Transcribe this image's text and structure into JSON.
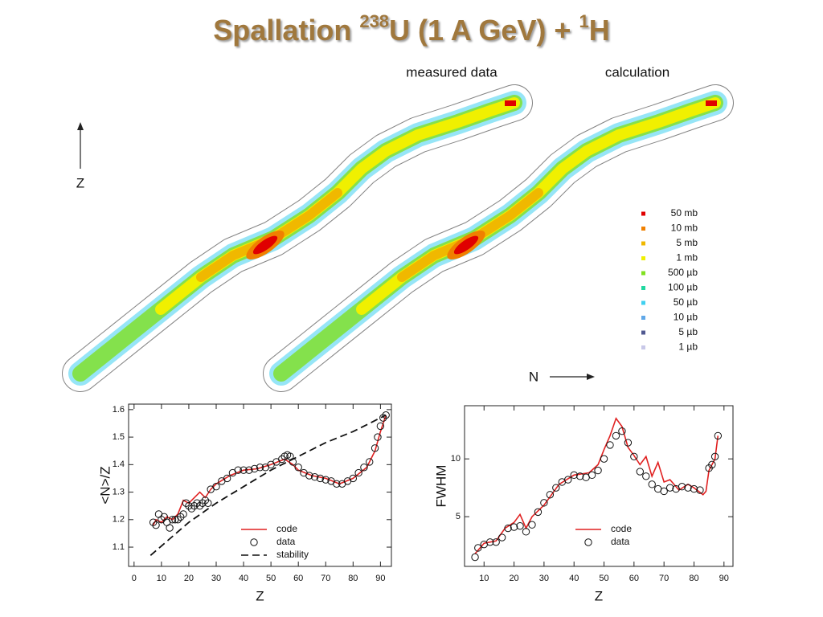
{
  "title": [
    "Spallation ",
    "238",
    "U (1 A GeV) + ",
    "1",
    "H"
  ],
  "panels": {
    "labels": [
      "measured data",
      "calculation"
    ],
    "x_axis_label": "N",
    "y_axis_label": "Z",
    "legend": [
      {
        "label": "50 mb",
        "color": "#e00000"
      },
      {
        "label": "10 mb",
        "color": "#f08000"
      },
      {
        "label": "5 mb",
        "color": "#f0b800"
      },
      {
        "label": "1 mb",
        "color": "#f0f000"
      },
      {
        "label": "500 µb",
        "color": "#80e020"
      },
      {
        "label": "100 µb",
        "color": "#20d8a0"
      },
      {
        "label": "50 µb",
        "color": "#40d0f0"
      },
      {
        "label": "10 µb",
        "color": "#60a8e8"
      },
      {
        "label": "5 µb",
        "color": "#505890"
      },
      {
        "label": "1 µb",
        "color": "#c8c8e8"
      }
    ]
  },
  "chart_data": [
    {
      "type": "line",
      "xlabel": "Z",
      "ylabel": "<N>/Z",
      "xlim": [
        -2,
        94
      ],
      "ylim": [
        1.03,
        1.62
      ],
      "xticks": [
        0,
        10,
        20,
        30,
        40,
        50,
        60,
        70,
        80,
        90
      ],
      "yticks": [
        1.1,
        1.2,
        1.3,
        1.4,
        1.5,
        1.6
      ],
      "series": [
        {
          "name": "code",
          "color": "#e02020",
          "style": "line",
          "dash": false,
          "x": [
            7,
            8,
            10,
            12,
            14,
            16,
            18,
            20,
            22,
            24,
            26,
            28,
            30,
            35,
            40,
            45,
            50,
            55,
            58,
            60,
            65,
            70,
            75,
            80,
            85,
            88,
            90,
            92
          ],
          "values": [
            1.18,
            1.2,
            1.19,
            1.21,
            1.2,
            1.22,
            1.27,
            1.26,
            1.28,
            1.3,
            1.28,
            1.31,
            1.33,
            1.36,
            1.38,
            1.385,
            1.4,
            1.42,
            1.4,
            1.38,
            1.36,
            1.35,
            1.33,
            1.35,
            1.39,
            1.45,
            1.52,
            1.58
          ]
        },
        {
          "name": "data",
          "color": "#111111",
          "style": "markers",
          "dash": false,
          "x": [
            7,
            8,
            9,
            10,
            11,
            12,
            13,
            14,
            15,
            16,
            17,
            18,
            19,
            20,
            21,
            22,
            23,
            24,
            25,
            26,
            27,
            28,
            30,
            32,
            34,
            36,
            38,
            40,
            42,
            44,
            46,
            48,
            50,
            52,
            54,
            55,
            56,
            57,
            58,
            60,
            62,
            64,
            66,
            68,
            70,
            72,
            74,
            76,
            78,
            80,
            82,
            84,
            86,
            88,
            89,
            90,
            91,
            92
          ],
          "values": [
            1.19,
            1.18,
            1.22,
            1.2,
            1.21,
            1.19,
            1.17,
            1.2,
            1.2,
            1.2,
            1.21,
            1.22,
            1.26,
            1.25,
            1.24,
            1.25,
            1.26,
            1.25,
            1.26,
            1.27,
            1.26,
            1.31,
            1.32,
            1.34,
            1.35,
            1.37,
            1.38,
            1.38,
            1.38,
            1.385,
            1.39,
            1.39,
            1.4,
            1.41,
            1.42,
            1.43,
            1.435,
            1.43,
            1.41,
            1.39,
            1.37,
            1.36,
            1.355,
            1.35,
            1.345,
            1.34,
            1.33,
            1.33,
            1.34,
            1.35,
            1.37,
            1.39,
            1.41,
            1.46,
            1.5,
            1.54,
            1.57,
            1.58
          ]
        },
        {
          "name": "stability",
          "color": "#111111",
          "style": "line",
          "dash": true,
          "x": [
            6,
            20,
            30,
            40,
            50,
            60,
            70,
            80,
            90,
            92
          ],
          "values": [
            1.07,
            1.19,
            1.26,
            1.32,
            1.38,
            1.43,
            1.48,
            1.52,
            1.57,
            1.58
          ]
        }
      ]
    },
    {
      "type": "line",
      "xlabel": "Z",
      "ylabel": "FWHM",
      "xlim": [
        3.5,
        93
      ],
      "ylim": [
        0.7,
        14.6
      ],
      "xticks": [
        10,
        20,
        30,
        40,
        50,
        60,
        70,
        80,
        90
      ],
      "yticks": [
        5,
        10
      ],
      "series": [
        {
          "name": "code",
          "color": "#e02020",
          "style": "line",
          "dash": false,
          "x": [
            7,
            10,
            14,
            17,
            20,
            22,
            24,
            26,
            30,
            35,
            40,
            45,
            48,
            50,
            52,
            54,
            56,
            58,
            60,
            62,
            64,
            66,
            68,
            70,
            72,
            75,
            78,
            80,
            83,
            84,
            85,
            87,
            88
          ],
          "values": [
            1.8,
            2.7,
            2.9,
            4,
            4.5,
            5.2,
            4,
            5,
            6,
            7.8,
            8.6,
            8.8,
            9.5,
            10.8,
            12,
            13.5,
            12.8,
            11,
            10.3,
            9.5,
            10.2,
            8.5,
            9.7,
            8,
            8.2,
            7.3,
            7.8,
            7.5,
            6.9,
            7.2,
            9,
            10,
            12
          ]
        },
        {
          "name": "data",
          "color": "#111111",
          "style": "markers",
          "dash": false,
          "x": [
            7,
            8,
            10,
            12,
            14,
            16,
            18,
            20,
            22,
            24,
            26,
            28,
            30,
            32,
            34,
            36,
            38,
            40,
            42,
            44,
            46,
            48,
            50,
            52,
            54,
            56,
            58,
            60,
            62,
            64,
            66,
            68,
            70,
            72,
            74,
            76,
            78,
            80,
            82,
            85,
            86,
            87,
            88
          ],
          "values": [
            1.5,
            2.3,
            2.6,
            2.8,
            2.8,
            3.2,
            4,
            4.1,
            4.2,
            3.7,
            4.3,
            5.4,
            6.2,
            6.9,
            7.5,
            8,
            8.2,
            8.6,
            8.5,
            8.4,
            8.6,
            9,
            10,
            11.2,
            12,
            12.4,
            11.4,
            10.2,
            8.9,
            8.5,
            7.8,
            7.4,
            7.2,
            7.5,
            7.4,
            7.6,
            7.5,
            7.4,
            7.3,
            9.2,
            9.5,
            10.2,
            12
          ]
        }
      ]
    }
  ]
}
